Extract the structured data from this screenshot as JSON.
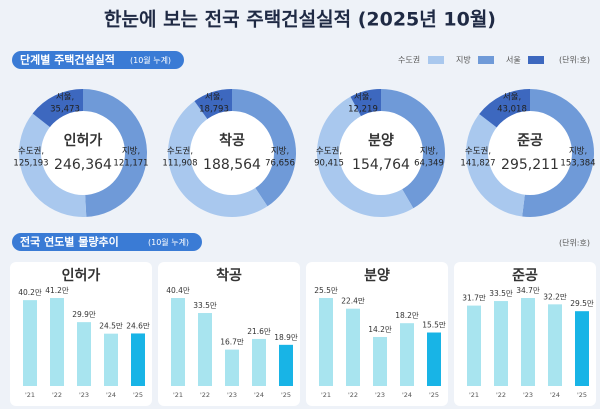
{
  "title": "한눈에 보는 전국 주택건설실적 (2025년 10월)",
  "section1": {
    "title": "단계별 주택건설실적",
    "note": "(10월 누계)",
    "unit": "(단위:호)",
    "legend": [
      {
        "name": "수도권",
        "color": "#a9c8ee"
      },
      {
        "name": "지방",
        "color": "#6f9ad8"
      },
      {
        "name": "서울",
        "color": "#3d68bf"
      }
    ]
  },
  "section2": {
    "title": "전국 연도별 물량추이",
    "note": "(10월 누계)",
    "unit": "(단위:호)"
  },
  "chart_data": [
    {
      "type": "donut",
      "center_label": "인허가",
      "total": 246364,
      "total_label": "246,364",
      "categories": [
        "수도권,",
        "지방,",
        "서울,"
      ],
      "values": [
        125193,
        121171,
        35473
      ],
      "value_labels": [
        "125,193",
        "121,171",
        "35,473"
      ],
      "colors": [
        "#a9c8ee",
        "#6f9ad8",
        "#3d68bf"
      ]
    },
    {
      "type": "donut",
      "center_label": "착공",
      "total": 188564,
      "total_label": "188,564",
      "categories": [
        "수도권,",
        "지방,",
        "서울,"
      ],
      "values": [
        111908,
        76656,
        18793
      ],
      "value_labels": [
        "111,908",
        "76,656",
        "18,793"
      ],
      "colors": [
        "#a9c8ee",
        "#6f9ad8",
        "#3d68bf"
      ]
    },
    {
      "type": "donut",
      "center_label": "분양",
      "total": 154764,
      "total_label": "154,764",
      "categories": [
        "수도권,",
        "지방,",
        "서울,"
      ],
      "values": [
        90415,
        64349,
        12219
      ],
      "value_labels": [
        "90,415",
        "64,349",
        "12,219"
      ],
      "colors": [
        "#a9c8ee",
        "#6f9ad8",
        "#3d68bf"
      ]
    },
    {
      "type": "donut",
      "center_label": "준공",
      "total": 295211,
      "total_label": "295,211",
      "categories": [
        "수도권,",
        "지방,",
        "서울,"
      ],
      "values": [
        141827,
        153384,
        43018
      ],
      "value_labels": [
        "141,827",
        "153,384",
        "43,018"
      ],
      "colors": [
        "#a9c8ee",
        "#6f9ad8",
        "#3d68bf"
      ]
    },
    {
      "type": "bar",
      "title": "인허가",
      "categories": [
        "'21",
        "'22",
        "'23",
        "'24",
        "'25"
      ],
      "values": [
        40.2,
        41.2,
        29.9,
        24.5,
        24.6
      ],
      "value_labels": [
        "40.2만",
        "41.2만",
        "29.9만",
        "24.5만",
        "24.6만"
      ],
      "colors": [
        "#a8e4ef",
        "#a8e4ef",
        "#a8e4ef",
        "#a8e4ef",
        "#18b4e6"
      ]
    },
    {
      "type": "bar",
      "title": "착공",
      "categories": [
        "'21",
        "'22",
        "'23",
        "'24",
        "'25"
      ],
      "values": [
        40.4,
        33.5,
        16.7,
        21.6,
        18.9
      ],
      "value_labels": [
        "40.4만",
        "33.5만",
        "16.7만",
        "21.6만",
        "18.9만"
      ],
      "colors": [
        "#a8e4ef",
        "#a8e4ef",
        "#a8e4ef",
        "#a8e4ef",
        "#18b4e6"
      ]
    },
    {
      "type": "bar",
      "title": "분양",
      "categories": [
        "'21",
        "'22",
        "'23",
        "'24",
        "'25"
      ],
      "values": [
        25.5,
        22.4,
        14.2,
        18.2,
        15.5
      ],
      "value_labels": [
        "25.5만",
        "22.4만",
        "14.2만",
        "18.2만",
        "15.5만"
      ],
      "colors": [
        "#a8e4ef",
        "#a8e4ef",
        "#a8e4ef",
        "#a8e4ef",
        "#18b4e6"
      ]
    },
    {
      "type": "bar",
      "title": "준공",
      "categories": [
        "'21",
        "'22",
        "'23",
        "'24",
        "'25"
      ],
      "values": [
        31.7,
        33.5,
        34.7,
        32.2,
        29.5
      ],
      "value_labels": [
        "31.7만",
        "33.5만",
        "34.7만",
        "32.2만",
        "29.5만"
      ],
      "colors": [
        "#a8e4ef",
        "#a8e4ef",
        "#a8e4ef",
        "#a8e4ef",
        "#18b4e6"
      ]
    }
  ]
}
